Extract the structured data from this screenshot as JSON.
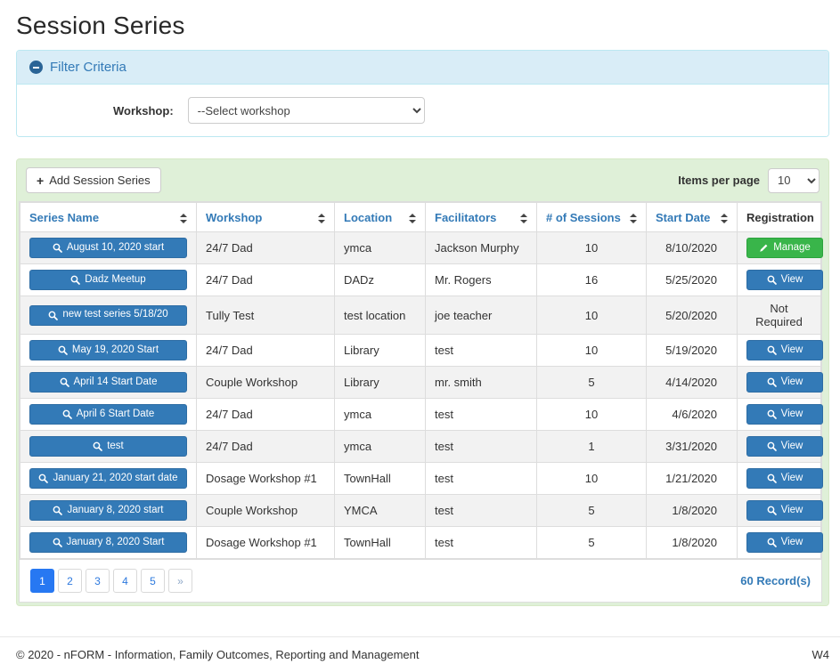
{
  "page": {
    "title": "Session Series"
  },
  "filter": {
    "title": "Filter Criteria",
    "workshop_label": "Workshop:",
    "workshop_selected": "--Select workshop"
  },
  "toolbar": {
    "add_button_label": "Add Session Series",
    "items_per_page_label": "Items per page",
    "items_per_page_selected": "10"
  },
  "table": {
    "columns": [
      {
        "label": "Series Name",
        "sortable": true
      },
      {
        "label": "Workshop",
        "sortable": true
      },
      {
        "label": "Location",
        "sortable": true
      },
      {
        "label": "Facilitators",
        "sortable": true
      },
      {
        "label": "# of Sessions",
        "sortable": true
      },
      {
        "label": "Start Date",
        "sortable": true
      },
      {
        "label": "Registration",
        "sortable": false
      }
    ],
    "rows": [
      {
        "series_name": "August 10, 2020 start",
        "workshop": "24/7 Dad",
        "location": "ymca",
        "facilitators": "Jackson Murphy",
        "sessions": "10",
        "start_date": "8/10/2020",
        "registration": {
          "type": "manage",
          "label": "Manage"
        }
      },
      {
        "series_name": "Dadz Meetup",
        "workshop": "24/7 Dad",
        "location": "DADz",
        "facilitators": "Mr. Rogers",
        "sessions": "16",
        "start_date": "5/25/2020",
        "registration": {
          "type": "view",
          "label": "View"
        }
      },
      {
        "series_name": "new test series 5/18/20",
        "workshop": "Tully Test",
        "location": "test location",
        "facilitators": "joe teacher",
        "sessions": "10",
        "start_date": "5/20/2020",
        "registration": {
          "type": "text",
          "label": "Not Required"
        }
      },
      {
        "series_name": "May 19, 2020 Start",
        "workshop": "24/7 Dad",
        "location": "Library",
        "facilitators": "test",
        "sessions": "10",
        "start_date": "5/19/2020",
        "registration": {
          "type": "view",
          "label": "View"
        }
      },
      {
        "series_name": "April 14 Start Date",
        "workshop": "Couple Workshop",
        "location": "Library",
        "facilitators": "mr. smith",
        "sessions": "5",
        "start_date": "4/14/2020",
        "registration": {
          "type": "view",
          "label": "View"
        }
      },
      {
        "series_name": "April 6 Start Date",
        "workshop": "24/7 Dad",
        "location": "ymca",
        "facilitators": "test",
        "sessions": "10",
        "start_date": "4/6/2020",
        "registration": {
          "type": "view",
          "label": "View"
        }
      },
      {
        "series_name": "test",
        "workshop": "24/7 Dad",
        "location": "ymca",
        "facilitators": "test",
        "sessions": "1",
        "start_date": "3/31/2020",
        "registration": {
          "type": "view",
          "label": "View"
        }
      },
      {
        "series_name": "January 21, 2020 start date",
        "workshop": "Dosage Workshop #1",
        "location": "TownHall",
        "facilitators": "test",
        "sessions": "10",
        "start_date": "1/21/2020",
        "registration": {
          "type": "view",
          "label": "View"
        }
      },
      {
        "series_name": "January 8, 2020 start",
        "workshop": "Couple Workshop",
        "location": "YMCA",
        "facilitators": "test",
        "sessions": "5",
        "start_date": "1/8/2020",
        "registration": {
          "type": "view",
          "label": "View"
        }
      },
      {
        "series_name": "January 8, 2020 Start",
        "workshop": "Dosage Workshop #1",
        "location": "TownHall",
        "facilitators": "test",
        "sessions": "5",
        "start_date": "1/8/2020",
        "registration": {
          "type": "view",
          "label": "View"
        }
      }
    ]
  },
  "pagination": {
    "pages": [
      "1",
      "2",
      "3",
      "4",
      "5"
    ],
    "active_page": "1",
    "next_label": "»",
    "records_text": "60 Record(s)"
  },
  "footer": {
    "copyright": "© 2020 - nFORM - Information, Family Outcomes, Reporting and Management",
    "code": "W4"
  },
  "colors": {
    "accent_blue": "#337ab7",
    "filter_header_bg": "#d9edf7",
    "panel_green_bg": "#dff0d8",
    "manage_green": "#39b54a",
    "active_page_blue": "#2778f2",
    "striped_row": "#f2f2f2"
  }
}
